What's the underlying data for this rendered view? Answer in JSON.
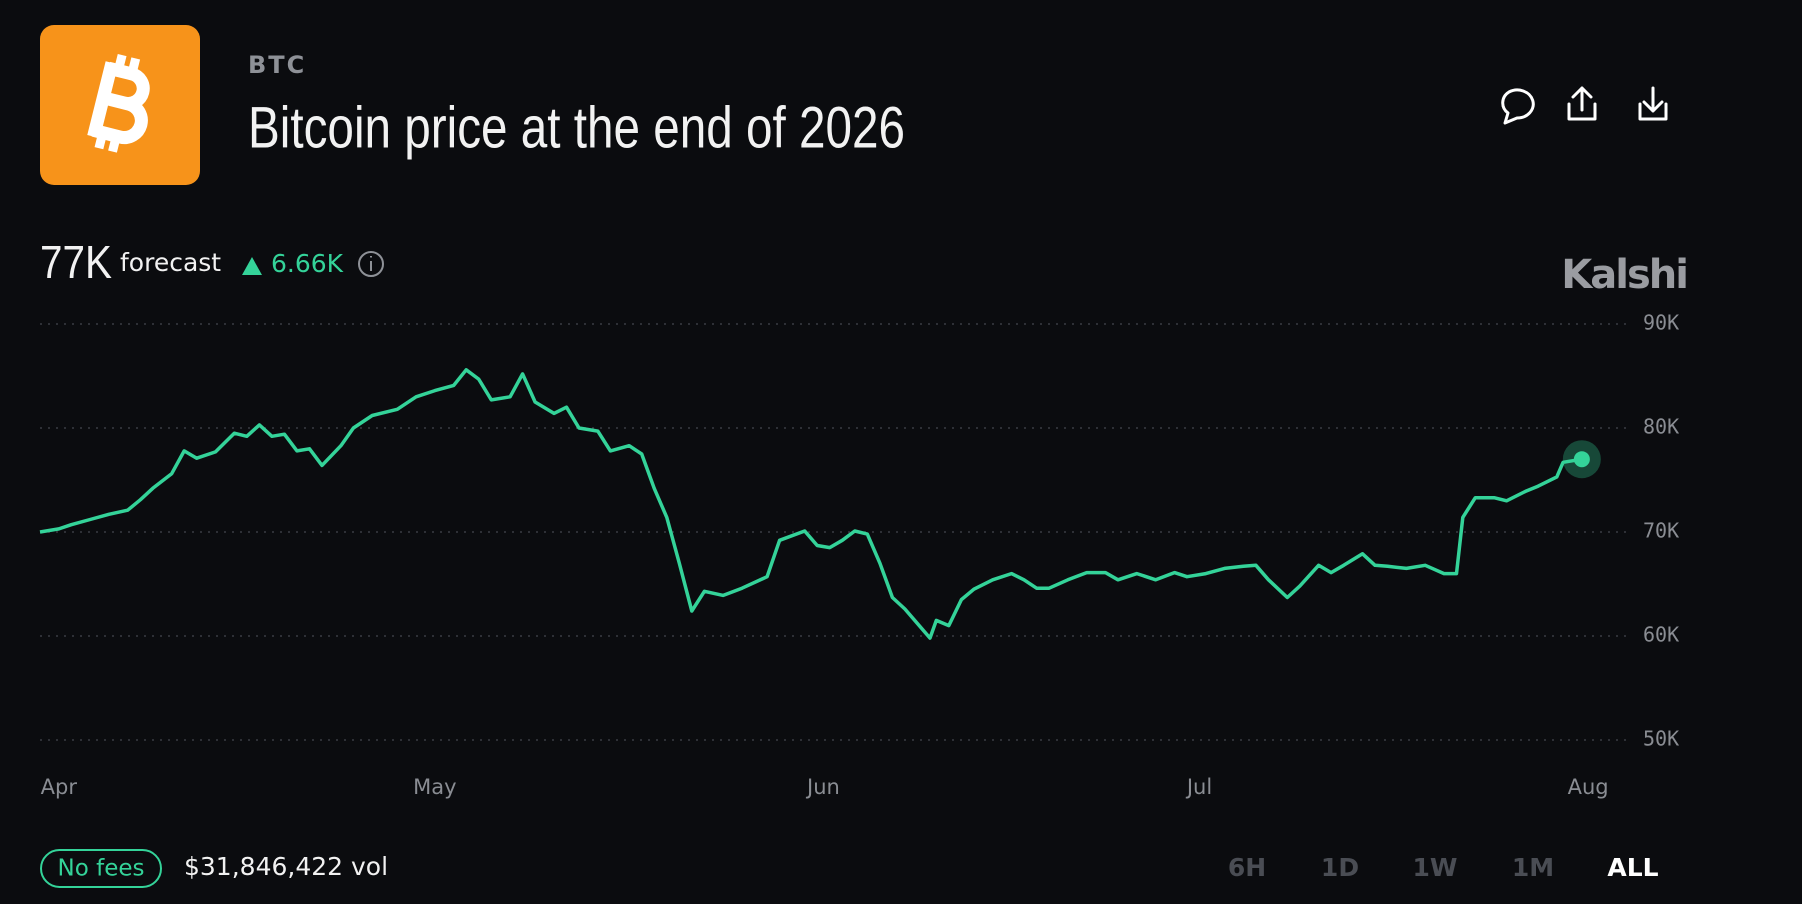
{
  "header": {
    "ticker": "BTC",
    "title": "Bitcoin price at the end of 2026"
  },
  "forecast": {
    "value": "77K",
    "label": "forecast",
    "change": "6.66K"
  },
  "brand": "Kalshi",
  "chart_data": {
    "type": "line",
    "color": "#34d399",
    "x": [
      -1.5,
      0,
      1,
      2.5,
      4,
      5.5,
      6.5,
      7.5,
      9,
      10,
      11,
      12.5,
      14,
      15,
      16,
      17,
      18,
      19,
      20,
      21,
      22.5,
      23.5,
      25,
      27,
      28.5,
      30,
      31.5,
      32.5,
      33.5,
      34.5,
      36,
      37,
      38,
      39.5,
      40.5,
      41.5,
      43,
      44,
      45.5,
      46.5,
      47.5,
      48.5,
      49.5,
      50.5,
      51.5,
      53,
      54.5,
      56.5,
      57.5,
      59.5,
      60.5,
      61.5,
      62.5,
      63.5,
      64.5,
      65.5,
      66.5,
      67.5,
      69.5,
      70,
      71,
      72,
      73,
      74.5,
      76,
      77,
      78,
      79,
      80.5,
      82,
      83.5,
      84.5,
      86,
      87.5,
      89,
      90,
      91.5,
      93,
      94.5,
      95.5,
      96.5,
      98,
      99,
      100.5,
      101.5,
      102.5,
      104,
      105,
      106,
      107.5,
      109,
      110.5,
      111.5,
      112,
      113,
      114.5,
      115.5,
      117,
      118,
      119.5,
      120,
      121.5
    ],
    "values": [
      70,
      70.3,
      70.7,
      71.2,
      71.7,
      72.1,
      73.1,
      74.2,
      75.6,
      77.8,
      77.1,
      77.7,
      79.5,
      79.2,
      80.3,
      79.2,
      79.4,
      77.8,
      78,
      76.4,
      78.3,
      80,
      81.2,
      81.8,
      83,
      83.6,
      84.1,
      85.6,
      84.7,
      82.7,
      83,
      85.2,
      82.5,
      81.4,
      82,
      80,
      79.7,
      77.8,
      78.3,
      77.5,
      74.2,
      71.4,
      67,
      62.4,
      64.3,
      63.9,
      64.6,
      65.7,
      69.2,
      70.1,
      68.7,
      68.5,
      69.2,
      70.1,
      69.8,
      67,
      63.7,
      62.6,
      59.8,
      61.5,
      61,
      63.5,
      64.5,
      65.4,
      66,
      65.4,
      64.6,
      64.6,
      65.4,
      66.1,
      66.1,
      65.4,
      66,
      65.4,
      66.1,
      65.7,
      66,
      66.5,
      66.7,
      66.8,
      65.4,
      63.7,
      64.8,
      66.8,
      66.1,
      66.8,
      67.9,
      66.8,
      66.7,
      66.5,
      66.8,
      66,
      66,
      71.4,
      73.3,
      73.3,
      73,
      73.9,
      74.4,
      75.3,
      76.7,
      77
    ],
    "xlim": [
      -1.5,
      125.5
    ],
    "xticks": [
      {
        "value": 0,
        "label": "Apr"
      },
      {
        "value": 30,
        "label": "May"
      },
      {
        "value": 61,
        "label": "Jun"
      },
      {
        "value": 91,
        "label": "Jul"
      },
      {
        "value": 122,
        "label": "Aug"
      }
    ],
    "ylim": [
      50,
      90
    ],
    "yticks": [
      {
        "value": 50,
        "label": "50K"
      },
      {
        "value": 60,
        "label": "60K"
      },
      {
        "value": 70,
        "label": "70K"
      },
      {
        "value": 80,
        "label": "80K"
      },
      {
        "value": 90,
        "label": "90K"
      }
    ],
    "grid": true
  },
  "footer": {
    "badge": "No fees",
    "volume": "$31,846,422 vol",
    "ranges": [
      "6H",
      "1D",
      "1W",
      "1M",
      "ALL"
    ],
    "selected_range": "ALL"
  }
}
